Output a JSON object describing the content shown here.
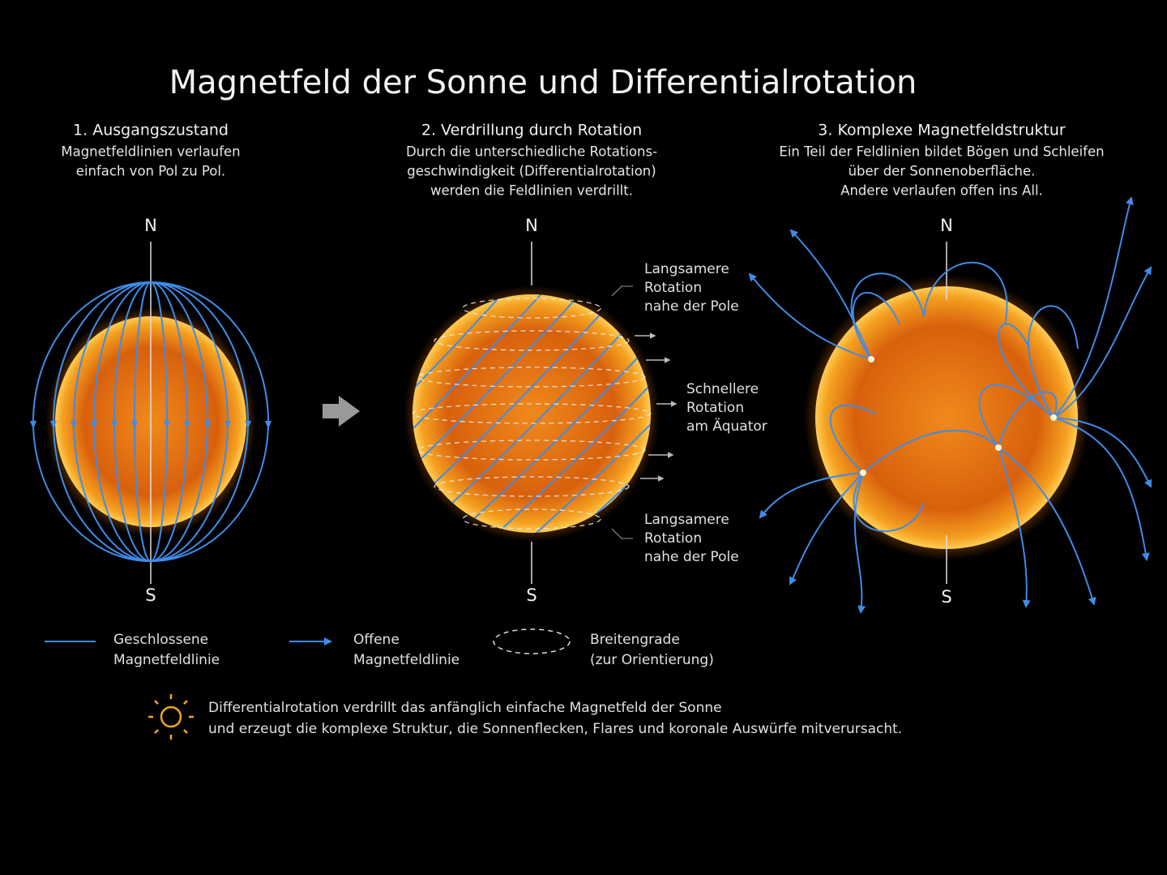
{
  "title": "Magnetfeld der Sonne und Differentialrotation",
  "panels": [
    {
      "heading": "1. Ausgangszustand",
      "description": [
        "Magnetfeldlinien verlaufen",
        "einfach von Pol zu Pol."
      ],
      "north": "N",
      "south": "S"
    },
    {
      "heading": "2. Verdrillung durch Rotation",
      "description": [
        "Durch die unterschiedliche Rotations-",
        "geschwindigkeit (Differentialrotation)",
        "werden die Feldlinien verdrillt."
      ],
      "north": "N",
      "south": "S",
      "annotations": [
        [
          "Langsamere",
          "Rotation",
          "nahe der Pole"
        ],
        [
          "Schnellere",
          "Rotation",
          "am Äquator"
        ],
        [
          "Langsamere",
          "Rotation",
          "nahe der Pole"
        ]
      ]
    },
    {
      "heading": "3. Komplexe Magnetfeldstruktur",
      "description": [
        "Ein Teil der Feldlinien bildet Bögen und Schleifen",
        "über der Sonnenoberfläche.",
        "Andere verlaufen offen ins All."
      ],
      "north": "N",
      "south": "S"
    }
  ],
  "legend": [
    [
      "Geschlossene",
      "Magnetfeldlinie"
    ],
    [
      "Offene",
      "Magnetfeldlinie"
    ],
    [
      "Breitengrade",
      "(zur Orientierung)"
    ]
  ],
  "footer": [
    "Differentialrotation verdrillt das anfänglich einfache Magnetfeld der Sonne",
    "und erzeugt die komplexe Struktur, die Sonnenflecken, Flares und koronale Auswürfe mitverursacht."
  ]
}
